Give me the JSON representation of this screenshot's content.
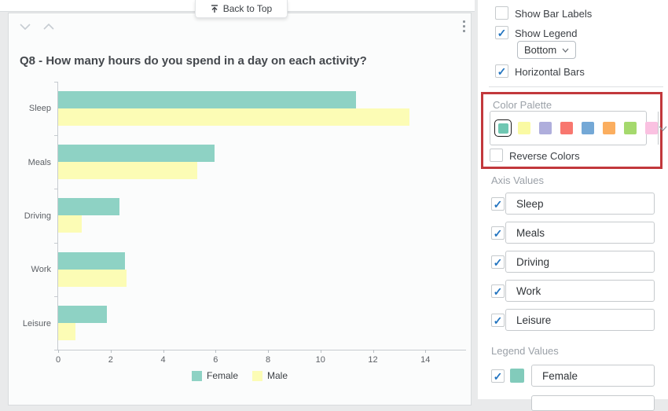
{
  "page": {
    "back_to_top": "Back to Top"
  },
  "chart_card": {
    "title": "Q8 - How many hours do you spend in a day on each activity?"
  },
  "chart_data": {
    "type": "bar",
    "orientation": "horizontal",
    "title": "Q8 - How many hours do you spend in a day on each activity?",
    "categories": [
      "Sleep",
      "Meals",
      "Driving",
      "Work",
      "Leisure"
    ],
    "series": [
      {
        "name": "Female",
        "color": "#8ED2C4",
        "values": [
          11.35,
          5.95,
          2.35,
          2.55,
          1.85
        ]
      },
      {
        "name": "Male",
        "color": "#FCFCB5",
        "values": [
          13.4,
          5.3,
          0.9,
          2.6,
          0.65
        ]
      }
    ],
    "xticks": [
      0,
      2,
      4,
      6,
      8,
      10,
      12,
      14
    ],
    "xlim": [
      0,
      15.55
    ],
    "legend_position": "bottom",
    "grid": false
  },
  "sidebar": {
    "show_bar_labels": {
      "label": "Show Bar Labels",
      "checked": false
    },
    "show_legend": {
      "label": "Show Legend",
      "checked": true
    },
    "legend_position": {
      "value": "Bottom"
    },
    "horizontal_bars": {
      "label": "Horizontal Bars",
      "checked": true
    },
    "color_palette": {
      "label": "Color Palette",
      "colors": [
        "#6FC7B2",
        "#FAFAA3",
        "#AFAEDC",
        "#F8776F",
        "#74A8D6",
        "#FBAE5F",
        "#A5D96D",
        "#FAC1E1"
      ],
      "selected_index": 0
    },
    "reverse_colors": {
      "label": "Reverse Colors",
      "checked": false
    },
    "axis_values": {
      "label": "Axis Values",
      "items": [
        {
          "label": "Sleep",
          "checked": true
        },
        {
          "label": "Meals",
          "checked": true
        },
        {
          "label": "Driving",
          "checked": true
        },
        {
          "label": "Work",
          "checked": true
        },
        {
          "label": "Leisure",
          "checked": true
        }
      ]
    },
    "legend_values": {
      "label": "Legend Values",
      "items": [
        {
          "label": "Female",
          "checked": true,
          "color": "#82CBBB"
        }
      ]
    }
  }
}
